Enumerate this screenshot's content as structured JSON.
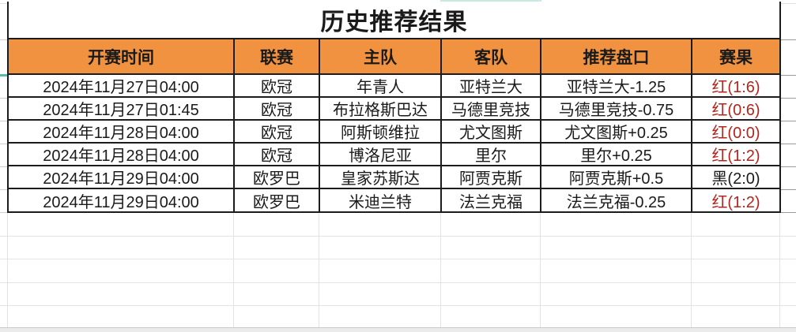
{
  "title": "历史推荐结果",
  "table": {
    "headers": [
      "开赛时间",
      "联赛",
      "主队",
      "客队",
      "推荐盘口",
      "赛果"
    ],
    "rows": [
      {
        "time": "2024年11月27日04:00",
        "league": "欧冠",
        "home": "年青人",
        "away": "亚特兰大",
        "handicap": "亚特兰大-1.25",
        "result": "红(1:6)",
        "result_color": "red"
      },
      {
        "time": "2024年11月27日01:45",
        "league": "欧冠",
        "home": "布拉格斯巴达",
        "away": "马德里竞技",
        "handicap": "马德里竞技-0.75",
        "result": "红(0:6)",
        "result_color": "red"
      },
      {
        "time": "2024年11月28日04:00",
        "league": "欧冠",
        "home": "阿斯顿维拉",
        "away": "尤文图斯",
        "handicap": "尤文图斯+0.25",
        "result": "红(0:0)",
        "result_color": "red"
      },
      {
        "time": "2024年11月28日04:00",
        "league": "欧冠",
        "home": "博洛尼亚",
        "away": "里尔",
        "handicap": "里尔+0.25",
        "result": "红(1:2)",
        "result_color": "red"
      },
      {
        "time": "2024年11月29日04:00",
        "league": "欧罗巴",
        "home": "皇家苏斯达",
        "away": "阿贾克斯",
        "handicap": "阿贾克斯+0.5",
        "result": "黑(2:0)",
        "result_color": "black"
      },
      {
        "time": "2024年11月29日04:00",
        "league": "欧罗巴",
        "home": "米迪兰特",
        "away": "法兰克福",
        "handicap": "法兰克福-0.25",
        "result": "红(1:2)",
        "result_color": "red"
      }
    ]
  },
  "colors": {
    "header_bg": "#F0923F",
    "result_red": "#B3241C",
    "result_black": "#1A1A1A",
    "accent_teal": "#4FC0AA",
    "accent_mint": "#C9EAE2"
  }
}
